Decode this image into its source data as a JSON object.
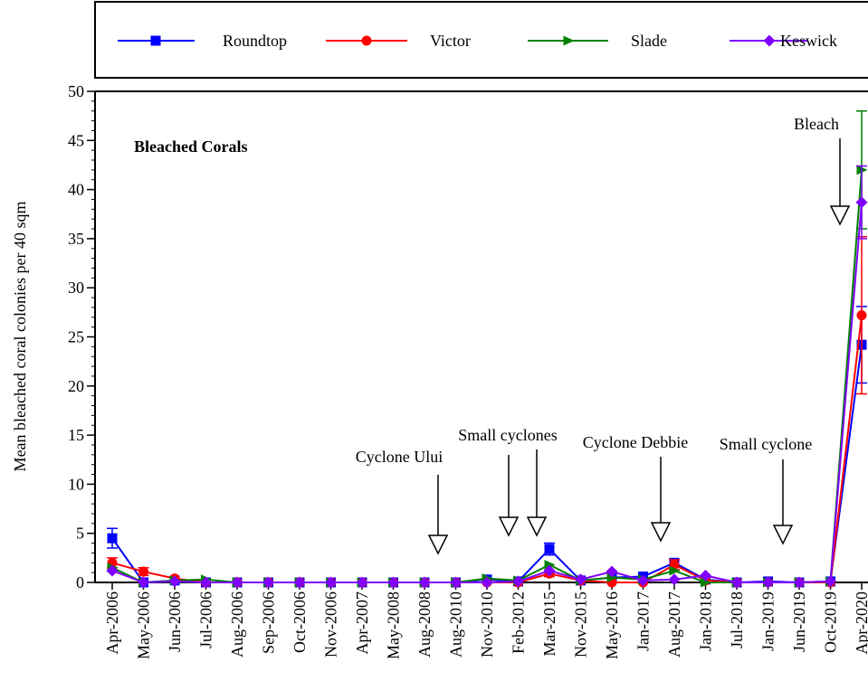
{
  "chart_data": {
    "type": "line",
    "title": "Bleached Corals",
    "y_label": "Mean bleached coral colonies per 40 sqm",
    "categories": [
      "Apr-2006",
      "May-2006",
      "Jun-2006",
      "Jul-2006",
      "Aug-2006",
      "Sep-2006",
      "Oct-2006",
      "Nov-2006",
      "Apr-2007",
      "May-2008",
      "Aug-2008",
      "Aug-2010",
      "Nov-2010",
      "Feb-2012",
      "Mar-2015",
      "Nov-2015",
      "May-2016",
      "Jan-2017",
      "Aug-2017",
      "Jan-2018",
      "Jul-2018",
      "Jan-2019",
      "Jun-2019",
      "Oct-2019",
      "Apr-2020"
    ],
    "series": [
      {
        "name": "Roundtop",
        "color": "#0000ff",
        "marker": "square",
        "values": [
          4.5,
          0,
          0.2,
          0,
          0,
          0,
          0,
          0,
          0,
          0,
          0,
          0,
          0.3,
          0.1,
          3.4,
          0.2,
          0.5,
          0.6,
          2.0,
          0.3,
          0,
          0.1,
          0,
          0.1,
          24.2
        ],
        "errors": [
          1.0,
          0,
          0,
          0,
          0,
          0,
          0,
          0,
          0,
          0,
          0,
          0,
          0,
          0,
          0.6,
          0,
          0,
          0,
          0.3,
          0,
          0,
          0,
          0,
          0,
          3.9
        ]
      },
      {
        "name": "Victor",
        "color": "#ff0000",
        "marker": "circle",
        "values": [
          2.0,
          1.1,
          0.4,
          0,
          0,
          0,
          0,
          0,
          0,
          0,
          0,
          0,
          0,
          0,
          0.9,
          0.2,
          0,
          0,
          1.8,
          0.2,
          0,
          0,
          0,
          0,
          27.2
        ],
        "errors": [
          0.5,
          0.4,
          0,
          0,
          0,
          0,
          0,
          0,
          0,
          0,
          0,
          0,
          0,
          0,
          0.3,
          0,
          0,
          0,
          0.5,
          0,
          0,
          0,
          0,
          0,
          8.0
        ]
      },
      {
        "name": "Slade",
        "color": "#008000",
        "marker": "triangle",
        "values": [
          1.5,
          0,
          0.2,
          0.3,
          0,
          0,
          0,
          0,
          0,
          0,
          0,
          0,
          0.4,
          0.2,
          1.8,
          0.2,
          0.5,
          0.3,
          1.2,
          0,
          0,
          0,
          0,
          0.1,
          42
        ],
        "errors": [
          0,
          0,
          0,
          0,
          0,
          0,
          0,
          0,
          0,
          0,
          0,
          0,
          0,
          0,
          0,
          0,
          0,
          0,
          0,
          0,
          0,
          0,
          0,
          0,
          6.0
        ]
      },
      {
        "name": "Keswick",
        "color": "#7f00ff",
        "marker": "diamond",
        "values": [
          1.2,
          0,
          0.1,
          0,
          0,
          0,
          0,
          0,
          0,
          0,
          0,
          0,
          0,
          0.1,
          1.2,
          0.3,
          1.1,
          0.2,
          0.3,
          0.7,
          0,
          0,
          0,
          0.1,
          38.7
        ],
        "errors": [
          0,
          0,
          0,
          0,
          0,
          0,
          0,
          0,
          0,
          0,
          0,
          0,
          0,
          0,
          0,
          0,
          0,
          0,
          0,
          0,
          0,
          0,
          0,
          0,
          3.7
        ]
      }
    ],
    "ylim": [
      0,
      50
    ],
    "yticks": [
      0,
      5,
      10,
      15,
      20,
      25,
      30,
      35,
      40,
      45,
      50
    ],
    "annotations": [
      "Cyclone Ului",
      "Small cyclones",
      "Cyclone Debbie",
      "Small cyclone",
      "Bleach"
    ]
  }
}
